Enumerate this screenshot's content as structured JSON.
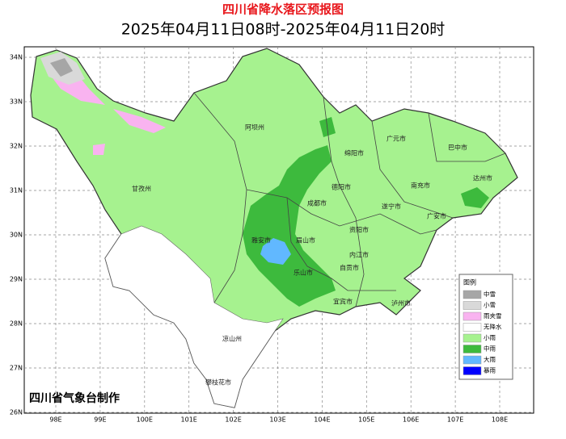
{
  "header": {
    "title": "四川省降水落区预报图",
    "subtitle": "2025年04月11日08时-2025年04月11日20时"
  },
  "map": {
    "lat_labels": [
      "34N",
      "33N",
      "32N",
      "31N",
      "30N",
      "29N",
      "28N",
      "27N",
      "26N"
    ],
    "lon_labels": [
      "98E",
      "99E",
      "100E",
      "101E",
      "102E",
      "103E",
      "104E",
      "105E",
      "106E",
      "107E",
      "108E"
    ],
    "places": [
      {
        "label": "阿坝州"
      },
      {
        "label": "甘孜州"
      },
      {
        "label": "绵阳市"
      },
      {
        "label": "广元市"
      },
      {
        "label": "巴中市"
      },
      {
        "label": "达州市"
      },
      {
        "label": "德阳市"
      },
      {
        "label": "南充市"
      },
      {
        "label": "成都市"
      },
      {
        "label": "遂宁市"
      },
      {
        "label": "广安市"
      },
      {
        "label": "雅安市"
      },
      {
        "label": "眉山市"
      },
      {
        "label": "资阳市"
      },
      {
        "label": "内江市"
      },
      {
        "label": "乐山市"
      },
      {
        "label": "自贡市"
      },
      {
        "label": "宜宾市"
      },
      {
        "label": "泸州市"
      },
      {
        "label": "凉山州"
      },
      {
        "label": "攀枝花市"
      }
    ]
  },
  "legend": {
    "title": "图例",
    "items": [
      {
        "label": "中雪",
        "color": "#a6a6a6"
      },
      {
        "label": "小雪",
        "color": "#d9d9d9"
      },
      {
        "label": "雨夹雪",
        "color": "#f9b3f0"
      },
      {
        "label": "无降水",
        "color": "#ffffff"
      },
      {
        "label": "小雨",
        "color": "#a6f28f"
      },
      {
        "label": "中雨",
        "color": "#3dba3d"
      },
      {
        "label": "大雨",
        "color": "#61b8ff"
      },
      {
        "label": "暴雨",
        "color": "#0000fe"
      }
    ]
  },
  "credit": "四川省气象台制作"
}
